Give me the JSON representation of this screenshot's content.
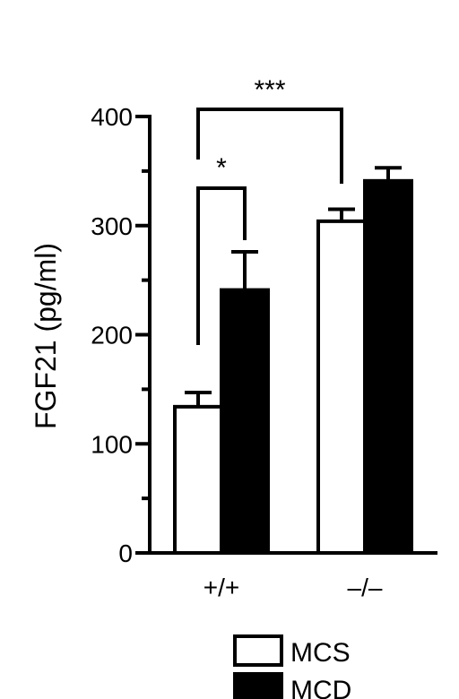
{
  "chart_data": {
    "type": "bar",
    "ylabel": "FGF21 (pg/ml)",
    "xlabel": "",
    "title": "",
    "ylim": [
      0,
      400
    ],
    "yticks": [
      0,
      100,
      200,
      300,
      400
    ],
    "categories": [
      "+/+",
      "–/–"
    ],
    "series": [
      {
        "name": "MCS",
        "values": [
          134,
          304
        ],
        "errors": [
          13,
          11
        ],
        "color": "#ffffff"
      },
      {
        "name": "MCD",
        "values": [
          241,
          341
        ],
        "errors": [
          35,
          12
        ],
        "color": "#000000"
      }
    ],
    "annotations": [
      {
        "label": "*",
        "between": "+/+ MCS vs +/+ MCD"
      },
      {
        "label": "***",
        "between": "+/+ MCS vs –/– MCS"
      }
    ],
    "grid": false,
    "legend_position": "bottom-right"
  }
}
